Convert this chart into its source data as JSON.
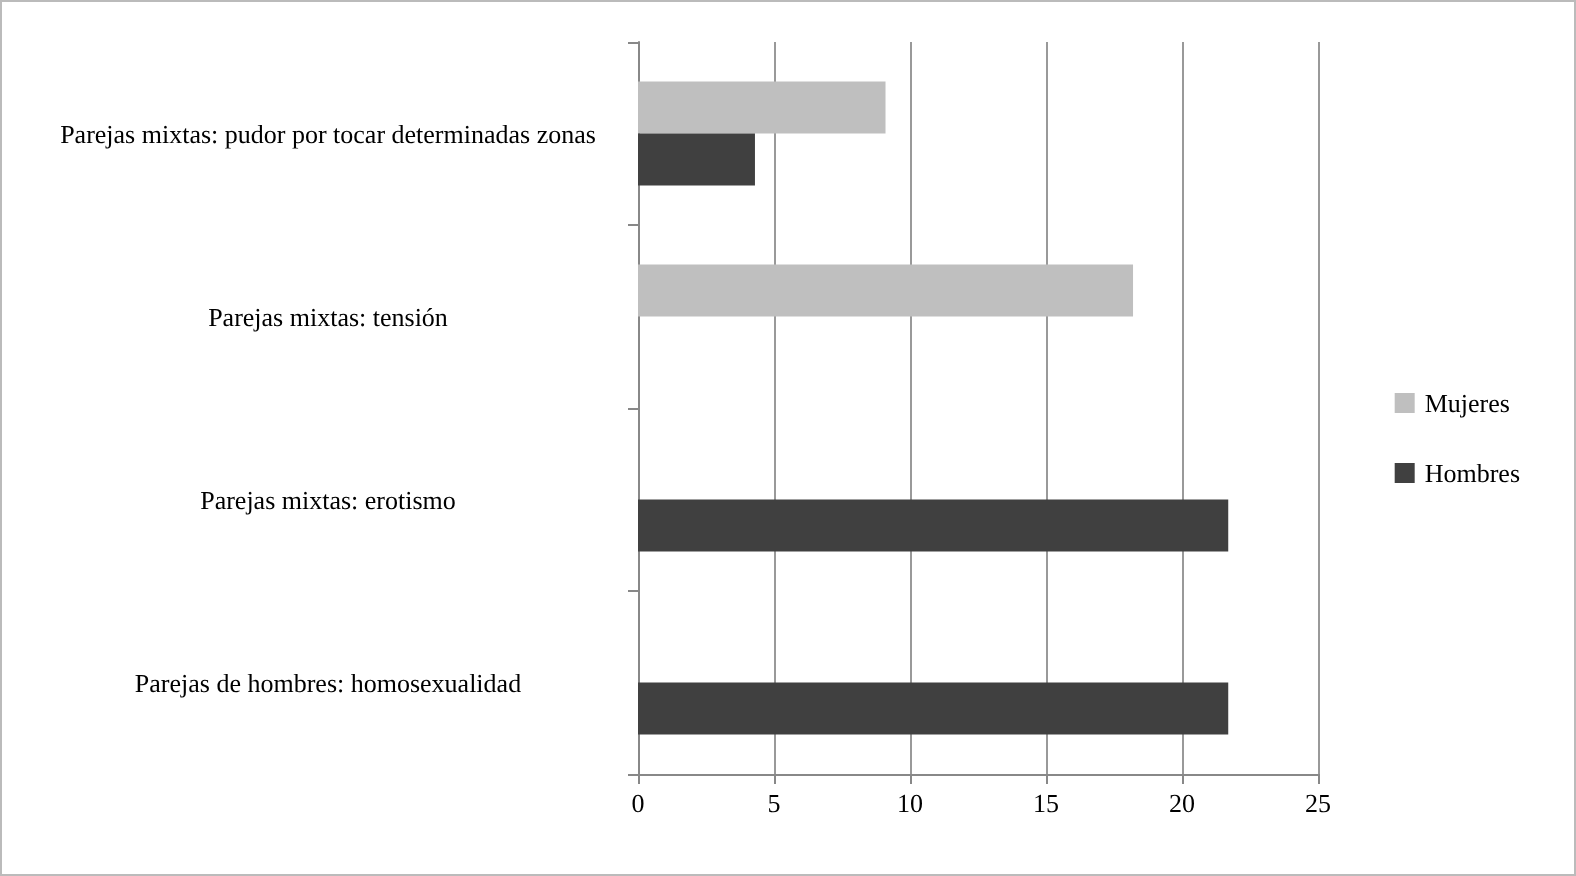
{
  "chart_data": {
    "type": "bar",
    "orientation": "horizontal",
    "categories": [
      "Parejas mixtas: pudor por tocar determinadas zonas",
      "Parejas mixtas: tensión",
      "Parejas mixtas: erotismo",
      "Parejas de hombres: homosexualidad"
    ],
    "series": [
      {
        "name": "Mujeres",
        "color": "#bfbfbf",
        "values": [
          9.1,
          18.2,
          null,
          null
        ]
      },
      {
        "name": "Hombres",
        "color": "#404040",
        "values": [
          4.3,
          null,
          21.7,
          21.7
        ]
      }
    ],
    "xlim": [
      0,
      25
    ],
    "xticks": [
      0,
      5,
      10,
      15,
      20,
      25
    ],
    "grid": "x",
    "legend": "right"
  }
}
